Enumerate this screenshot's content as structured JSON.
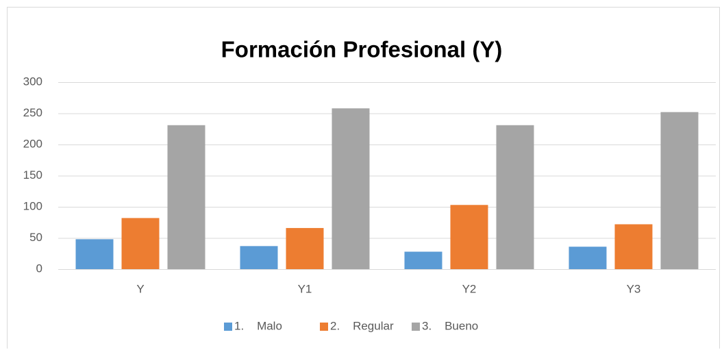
{
  "chart_data": {
    "type": "bar",
    "title": "Formación Profesional (Y)",
    "categories": [
      "Y",
      "Y1",
      "Y2",
      "Y3"
    ],
    "series": [
      {
        "name": "1.    Malo",
        "color": "#5b9bd5",
        "values": [
          48,
          37,
          28,
          36
        ]
      },
      {
        "name": "2.    Regular",
        "color": "#ed7d31",
        "values": [
          82,
          66,
          103,
          72
        ]
      },
      {
        "name": "3.    Bueno",
        "color": "#a5a5a5",
        "values": [
          231,
          258,
          231,
          252
        ]
      }
    ],
    "ylim": [
      0,
      300
    ],
    "yticks": [
      0,
      50,
      100,
      150,
      200,
      250,
      300
    ],
    "grid": true,
    "legend": "bottom"
  }
}
